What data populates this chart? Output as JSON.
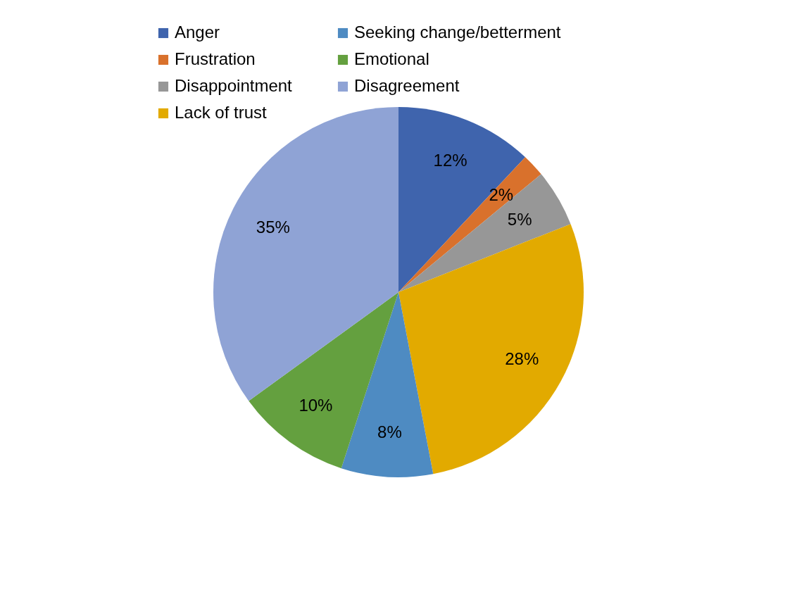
{
  "chart_data": {
    "type": "pie",
    "categories": [
      "Anger",
      "Frustration",
      "Disappointment",
      "Lack of trust",
      "Seeking change/betterment",
      "Emotional",
      "Disagreement"
    ],
    "values": [
      12,
      2,
      5,
      28,
      8,
      10,
      35
    ],
    "colors": [
      "#3f64ad",
      "#d9712c",
      "#979797",
      "#e2aa00",
      "#4e8bc2",
      "#64a03f",
      "#8fa3d5"
    ],
    "value_labels": [
      "12%",
      "2%",
      "5%",
      "28%",
      "8%",
      "10%",
      "35%"
    ],
    "legend": "top"
  }
}
